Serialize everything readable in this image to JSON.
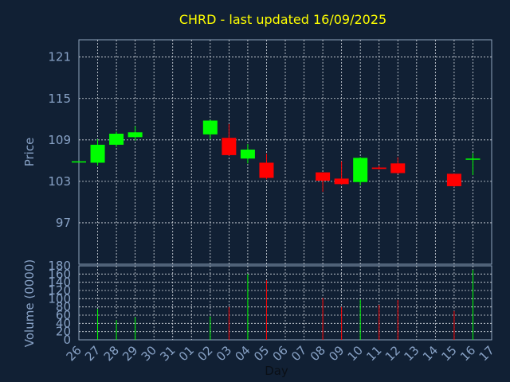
{
  "chart_data": {
    "type": "candlestick",
    "title": "CHRD - last updated 16/09/2025",
    "ylabel": "Price",
    "volume_label": "Volume (0000)",
    "xlabel": "Day",
    "days": [
      "26",
      "27",
      "28",
      "29",
      "30",
      "31",
      "01",
      "02",
      "03",
      "04",
      "05",
      "06",
      "07",
      "08",
      "09",
      "10",
      "11",
      "12",
      "13",
      "14",
      "15",
      "16",
      "17"
    ],
    "price_ticks": [
      97,
      103,
      109,
      115,
      121
    ],
    "price_ylim": [
      91,
      123.5
    ],
    "volume_ticks": [
      0,
      20,
      40,
      60,
      80,
      100,
      120,
      140,
      160,
      180
    ],
    "volume_ylim": [
      0,
      180
    ],
    "up_color": "#00ff00",
    "down_color": "#ff0000",
    "candles": [
      {
        "day": "26",
        "open": 105.9,
        "close": 105.9,
        "high": 105.9,
        "low": 105.9,
        "volume": 0
      },
      {
        "day": "27",
        "open": 105.7,
        "close": 108.3,
        "high": 109.1,
        "low": 105.3,
        "volume": 75
      },
      {
        "day": "28",
        "open": 108.3,
        "close": 109.9,
        "high": 110.2,
        "low": 108.0,
        "volume": 48
      },
      {
        "day": "29",
        "open": 109.4,
        "close": 110.1,
        "high": 111.0,
        "low": 108.9,
        "volume": 55
      },
      {
        "day": "02",
        "open": 109.8,
        "close": 111.8,
        "high": 111.9,
        "low": 109.1,
        "volume": 57
      },
      {
        "day": "03",
        "open": 109.3,
        "close": 106.8,
        "high": 111.3,
        "low": 106.7,
        "volume": 80
      },
      {
        "day": "04",
        "open": 106.3,
        "close": 107.6,
        "high": 108.4,
        "low": 105.6,
        "volume": 160
      },
      {
        "day": "05",
        "open": 105.7,
        "close": 103.5,
        "high": 107.0,
        "low": 103.3,
        "volume": 145
      },
      {
        "day": "08",
        "open": 104.3,
        "close": 103.1,
        "high": 104.3,
        "low": 101.5,
        "volume": 102
      },
      {
        "day": "09",
        "open": 103.4,
        "close": 102.6,
        "high": 105.9,
        "low": 102.5,
        "volume": 80
      },
      {
        "day": "10",
        "open": 102.9,
        "close": 106.4,
        "high": 106.5,
        "low": 102.4,
        "volume": 98
      },
      {
        "day": "11",
        "open": 105.0,
        "close": 104.8,
        "high": 105.3,
        "low": 104.7,
        "volume": 85
      },
      {
        "day": "12",
        "open": 105.6,
        "close": 104.2,
        "high": 106.5,
        "low": 104.1,
        "volume": 97
      },
      {
        "day": "15",
        "open": 104.1,
        "close": 102.3,
        "high": 104.1,
        "low": 102.2,
        "volume": 70
      },
      {
        "day": "16",
        "open": 106.3,
        "close": 106.3,
        "high": 107.1,
        "low": 103.9,
        "volume": 170
      }
    ]
  }
}
